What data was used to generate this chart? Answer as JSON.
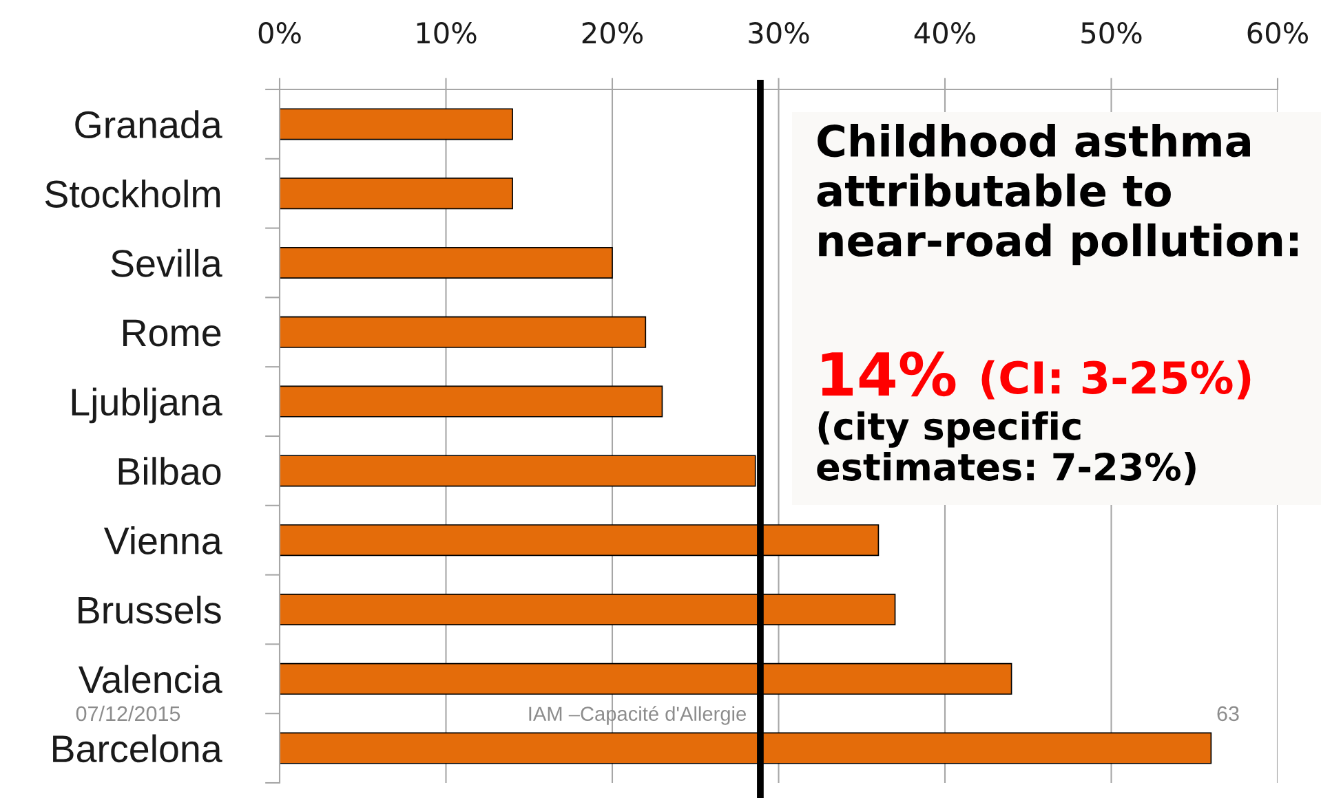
{
  "chart_data": {
    "type": "bar",
    "orientation": "horizontal",
    "title": "Childhood asthma\nattributable to\nnear-road pollution:",
    "categories": [
      "Granada",
      "Stockholm",
      "Sevilla",
      "Rome",
      "Ljubljana",
      "Bilbao",
      "Vienna",
      "Brussels",
      "Valencia",
      "Barcelona"
    ],
    "values": [
      14,
      14,
      20,
      22,
      23,
      28.6,
      36,
      37,
      44,
      56
    ],
    "color": "#e46c0a",
    "xlim": [
      0,
      60
    ],
    "xticks": [
      {
        "value": 0,
        "label": "0%"
      },
      {
        "value": 10,
        "label": "10%"
      },
      {
        "value": 20,
        "label": "20%"
      },
      {
        "value": 30,
        "label": "30%"
      },
      {
        "value": 40,
        "label": "40%"
      },
      {
        "value": 50,
        "label": "50%"
      },
      {
        "value": 60,
        "label": "60%"
      }
    ],
    "grid": "x",
    "ref_lines": [
      {
        "axis": "x",
        "value": 28.9,
        "color": "#000000"
      }
    ],
    "annotations": [
      "14%",
      "(CI: 3-25%)",
      "(city specific\nestimates: 7-23%)",
      "07/12/2015",
      "IAM –Capacité d'Allergie",
      "63"
    ]
  }
}
